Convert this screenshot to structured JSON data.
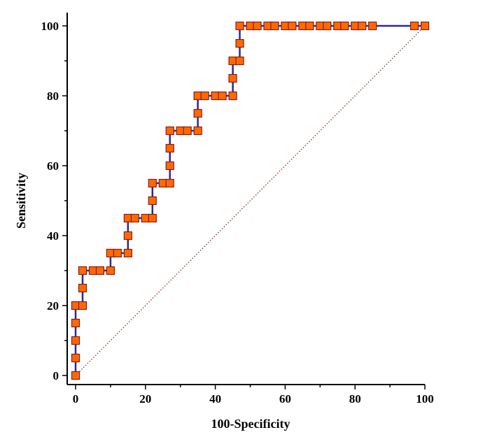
{
  "chart_data": {
    "type": "line",
    "title": "",
    "xlabel": "100-Specificity",
    "ylabel": "Sensitivity",
    "xlim": [
      0,
      100
    ],
    "ylim": [
      0,
      100
    ],
    "x_ticks": [
      "0",
      "20",
      "40",
      "60",
      "80",
      "100"
    ],
    "y_ticks": [
      "0",
      "20",
      "40",
      "60",
      "80",
      "100"
    ],
    "grid": false,
    "legend": "none",
    "colors": {
      "roc_line": "#2b2b8f",
      "marker_fill": "#ff6a00",
      "marker_border": "#8b1a1a",
      "diagonal": "#8b1a1a"
    },
    "series": [
      {
        "style": "roc-curve-with-square-markers",
        "x": [
          0,
          0,
          0,
          0,
          0,
          0,
          2,
          2,
          2,
          5,
          7,
          10,
          10,
          12,
          15,
          15,
          15,
          17,
          20,
          22,
          22,
          22,
          25,
          27,
          27,
          27,
          27,
          30,
          32,
          35,
          35,
          35,
          37,
          40,
          42,
          45,
          45,
          45,
          47,
          47,
          47,
          50,
          52,
          55,
          57,
          60,
          62,
          65,
          67,
          70,
          72,
          75,
          77,
          80,
          82,
          85,
          97,
          100
        ],
        "y": [
          0,
          5,
          10,
          15,
          20,
          20,
          20,
          25,
          30,
          30,
          30,
          30,
          35,
          35,
          35,
          40,
          45,
          45,
          45,
          45,
          50,
          55,
          55,
          55,
          60,
          65,
          70,
          70,
          70,
          70,
          75,
          80,
          80,
          80,
          80,
          80,
          85,
          90,
          90,
          95,
          100,
          100,
          100,
          100,
          100,
          100,
          100,
          100,
          100,
          100,
          100,
          100,
          100,
          100,
          100,
          100,
          100,
          100
        ]
      },
      {
        "style": "reference-diagonal",
        "x": [
          0,
          100
        ],
        "y": [
          0,
          100
        ]
      }
    ]
  }
}
